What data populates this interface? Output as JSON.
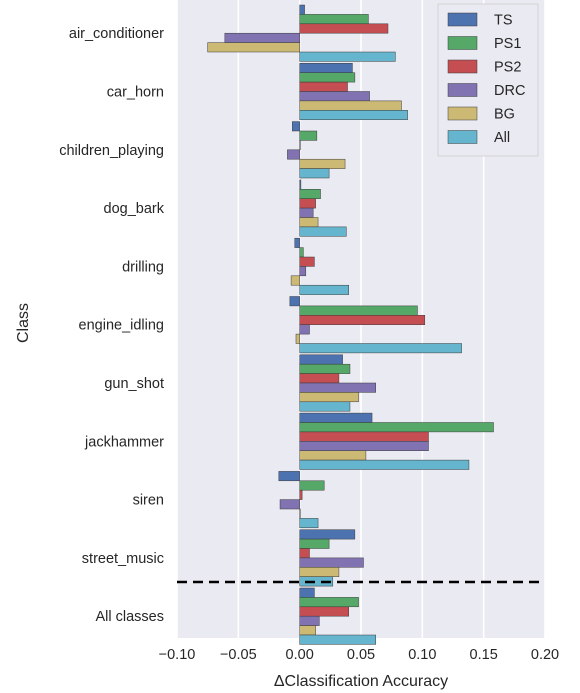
{
  "chart_data": {
    "type": "bar",
    "orientation": "horizontal",
    "xlabel": "ΔClassification Accuracy",
    "ylabel": "Class",
    "xlim": [
      -0.1,
      0.2
    ],
    "xticks": [
      -0.1,
      -0.05,
      0.0,
      0.05,
      0.1,
      0.15,
      0.2
    ],
    "xtick_labels": [
      "−0.10",
      "−0.05",
      "0.00",
      "0.05",
      "0.10",
      "0.15",
      "0.20"
    ],
    "grid": true,
    "legend_position": "top-right",
    "categories": [
      "air_conditioner",
      "car_horn",
      "children_playing",
      "dog_bark",
      "drilling",
      "engine_idling",
      "gun_shot",
      "jackhammer",
      "siren",
      "street_music",
      "All classes"
    ],
    "separator_before": "All classes",
    "series": [
      {
        "name": "TS",
        "color": "#4c72b0",
        "values": [
          0.004,
          0.043,
          -0.006,
          0.001,
          -0.004,
          -0.008,
          0.035,
          0.059,
          -0.017,
          0.045,
          0.012
        ]
      },
      {
        "name": "PS1",
        "color": "#55a868",
        "values": [
          0.056,
          0.045,
          0.014,
          0.017,
          0.003,
          0.096,
          0.041,
          0.158,
          0.02,
          0.024,
          0.048
        ]
      },
      {
        "name": "PS2",
        "color": "#c44e52",
        "values": [
          0.072,
          0.039,
          0.0,
          0.013,
          0.012,
          0.102,
          0.032,
          0.105,
          0.002,
          0.008,
          0.04
        ]
      },
      {
        "name": "DRC",
        "color": "#8172b2",
        "values": [
          -0.061,
          0.057,
          -0.01,
          0.011,
          0.005,
          0.008,
          0.062,
          0.105,
          -0.016,
          0.052,
          0.016
        ]
      },
      {
        "name": "BG",
        "color": "#ccb974",
        "values": [
          -0.075,
          0.083,
          0.037,
          0.015,
          -0.007,
          -0.003,
          0.048,
          0.054,
          0.0,
          0.032,
          0.013
        ]
      },
      {
        "name": "All",
        "color": "#64b5cd",
        "values": [
          0.078,
          0.088,
          0.024,
          0.038,
          0.04,
          0.132,
          0.041,
          0.138,
          0.015,
          0.027,
          0.062
        ]
      }
    ]
  }
}
